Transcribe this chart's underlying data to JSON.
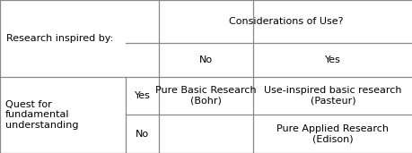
{
  "bg_color": "#ffffff",
  "line_color": "#888888",
  "text_color": "#000000",
  "font_size": 8.0,
  "cells": {
    "considerations_header": "Considerations of Use?",
    "no_header": "No",
    "yes_header": "Yes",
    "row_header_left": "Research inspired by:",
    "row_header_quest": "Quest for\nfundamental\nunderstanding",
    "row_yes_label": "Yes",
    "row_no_label": "No",
    "cell_pure_basic": "Pure Basic Research\n(Bohr)",
    "cell_use_inspired": "Use-inspired basic research\n(Pasteur)",
    "cell_empty": "",
    "cell_pure_applied": "Pure Applied Research\n(Edison)"
  },
  "col_splits": [
    0.0,
    0.305,
    0.385,
    0.613,
    1.0
  ],
  "row_splits": [
    0.0,
    0.28,
    0.5,
    0.75,
    1.0
  ]
}
